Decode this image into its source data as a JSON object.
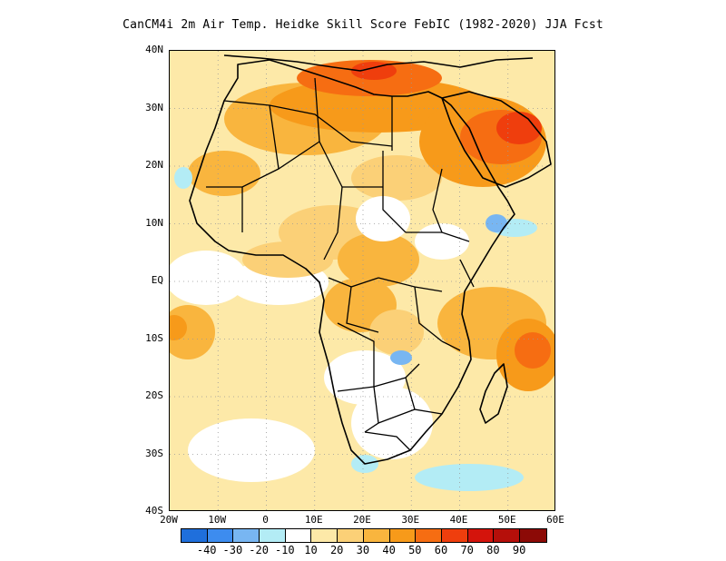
{
  "title": "CanCM4i  2m Air Temp. Heidke Skill Score FebIC (1982-2020) JJA Fcst",
  "map": {
    "region": "Africa",
    "lon_range": [
      -20,
      60
    ],
    "lat_range": [
      -40,
      40
    ],
    "grid": "dotted",
    "y_ticks": [
      "40N",
      "30N",
      "20N",
      "10N",
      "EQ",
      "10S",
      "20S",
      "30S",
      "40S"
    ],
    "x_ticks": [
      "20W",
      "10W",
      "0",
      "10E",
      "20E",
      "30E",
      "40E",
      "50E",
      "60E"
    ]
  },
  "colorbar": {
    "colors": [
      "#1f6fdc",
      "#3d8cef",
      "#78b6f2",
      "#b3ecf5",
      "#ffffff",
      "#fde9a8",
      "#fbd077",
      "#f9b53e",
      "#f79a1a",
      "#f66d12",
      "#ef3e0d",
      "#d4140c",
      "#b50f0a",
      "#8c0a06"
    ],
    "labels": [
      "-40",
      "-30",
      "-20",
      "-10",
      "10",
      "20",
      "30",
      "40",
      "50",
      "60",
      "70",
      "80",
      "90"
    ]
  }
}
